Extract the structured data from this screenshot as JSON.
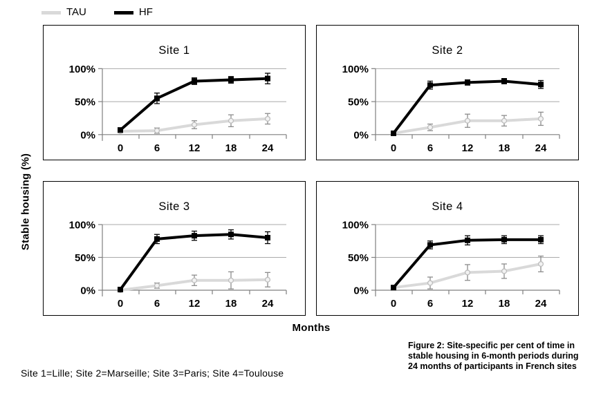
{
  "legend": {
    "items": [
      {
        "label": "TAU",
        "color": "#d9d9d9"
      },
      {
        "label": "HF",
        "color": "#000000"
      }
    ]
  },
  "axes": {
    "ylabel": "Stable housing (%)",
    "xlabel": "Months"
  },
  "caption": "Figure 2: Site-specific per cent of time in stable housing in 6-month periods during 24 months of participants in French sites",
  "footnote": "Site 1=Lille; Site 2=Marseille; Site 3=Paris; Site 4=Toulouse",
  "colors": {
    "gridline": "#a9a9a9",
    "axis": "#7f7f7f",
    "tau_line": "#d9d9d9",
    "tau_marker_fill": "#f2f2f2",
    "tau_marker_stroke": "#bdbdbd",
    "tau_error": "#8c8c8c",
    "hf": "#000000"
  },
  "chart_data": [
    {
      "type": "line",
      "title": "Site 1",
      "x": [
        0,
        6,
        12,
        18,
        24
      ],
      "xtick_labels": [
        "0",
        "6",
        "12",
        "18",
        "24"
      ],
      "yticks": [
        0,
        50,
        100
      ],
      "ytick_labels": [
        "0%",
        "50%",
        "100%"
      ],
      "ylim": [
        0,
        100
      ],
      "grid": "horizontal",
      "series": [
        {
          "name": "TAU",
          "marker": "circle",
          "line_color": "#d9d9d9",
          "marker_fill": "#f2f2f2",
          "marker_stroke": "#bdbdbd",
          "err_color": "#8c8c8c",
          "values": [
            5,
            6,
            15,
            21,
            24
          ],
          "err": [
            2,
            4,
            6,
            9,
            8
          ]
        },
        {
          "name": "HF",
          "marker": "square",
          "line_color": "#000000",
          "marker_fill": "#000000",
          "marker_stroke": "#000000",
          "err_color": "#000000",
          "values": [
            7,
            55,
            81,
            83,
            85
          ],
          "err": [
            3,
            8,
            5,
            5,
            8
          ]
        }
      ]
    },
    {
      "type": "line",
      "title": "Site 2",
      "x": [
        0,
        6,
        12,
        18,
        24
      ],
      "xtick_labels": [
        "0",
        "6",
        "12",
        "18",
        "24"
      ],
      "yticks": [
        0,
        50,
        100
      ],
      "ytick_labels": [
        "0%",
        "50%",
        "100%"
      ],
      "ylim": [
        0,
        100
      ],
      "grid": "horizontal",
      "series": [
        {
          "name": "TAU",
          "marker": "circle",
          "line_color": "#d9d9d9",
          "marker_fill": "#f2f2f2",
          "marker_stroke": "#bdbdbd",
          "err_color": "#8c8c8c",
          "values": [
            2,
            11,
            21,
            21,
            24
          ],
          "err": [
            2,
            5,
            10,
            8,
            10
          ]
        },
        {
          "name": "HF",
          "marker": "square",
          "line_color": "#000000",
          "marker_fill": "#000000",
          "marker_stroke": "#000000",
          "err_color": "#000000",
          "values": [
            2,
            75,
            79,
            81,
            76
          ],
          "err": [
            2,
            6,
            4,
            4,
            6
          ]
        }
      ]
    },
    {
      "type": "line",
      "title": "Site 3",
      "x": [
        0,
        6,
        12,
        18,
        24
      ],
      "xtick_labels": [
        "0",
        "6",
        "12",
        "18",
        "24"
      ],
      "yticks": [
        0,
        50,
        100
      ],
      "ytick_labels": [
        "0%",
        "50%",
        "100%"
      ],
      "ylim": [
        0,
        100
      ],
      "grid": "horizontal",
      "series": [
        {
          "name": "TAU",
          "marker": "circle",
          "line_color": "#d9d9d9",
          "marker_fill": "#f2f2f2",
          "marker_stroke": "#bdbdbd",
          "err_color": "#8c8c8c",
          "values": [
            0,
            7,
            15,
            15,
            16
          ],
          "err": [
            1,
            4,
            8,
            13,
            11
          ]
        },
        {
          "name": "HF",
          "marker": "square",
          "line_color": "#000000",
          "marker_fill": "#000000",
          "marker_stroke": "#000000",
          "err_color": "#000000",
          "values": [
            1,
            78,
            83,
            85,
            80
          ],
          "err": [
            1,
            7,
            7,
            7,
            9
          ]
        }
      ]
    },
    {
      "type": "line",
      "title": "Site 4",
      "x": [
        0,
        6,
        12,
        18,
        24
      ],
      "xtick_labels": [
        "0",
        "6",
        "12",
        "18",
        "24"
      ],
      "yticks": [
        0,
        50,
        100
      ],
      "ytick_labels": [
        "0%",
        "50%",
        "100%"
      ],
      "ylim": [
        0,
        100
      ],
      "grid": "horizontal",
      "series": [
        {
          "name": "TAU",
          "marker": "circle",
          "line_color": "#d9d9d9",
          "marker_fill": "#f2f2f2",
          "marker_stroke": "#bdbdbd",
          "err_color": "#8c8c8c",
          "values": [
            4,
            11,
            27,
            29,
            40
          ],
          "err": [
            3,
            9,
            12,
            11,
            12
          ]
        },
        {
          "name": "HF",
          "marker": "square",
          "line_color": "#000000",
          "marker_fill": "#000000",
          "marker_stroke": "#000000",
          "err_color": "#000000",
          "values": [
            4,
            69,
            76,
            77,
            77
          ],
          "err": [
            3,
            6,
            7,
            6,
            6
          ]
        }
      ]
    }
  ]
}
